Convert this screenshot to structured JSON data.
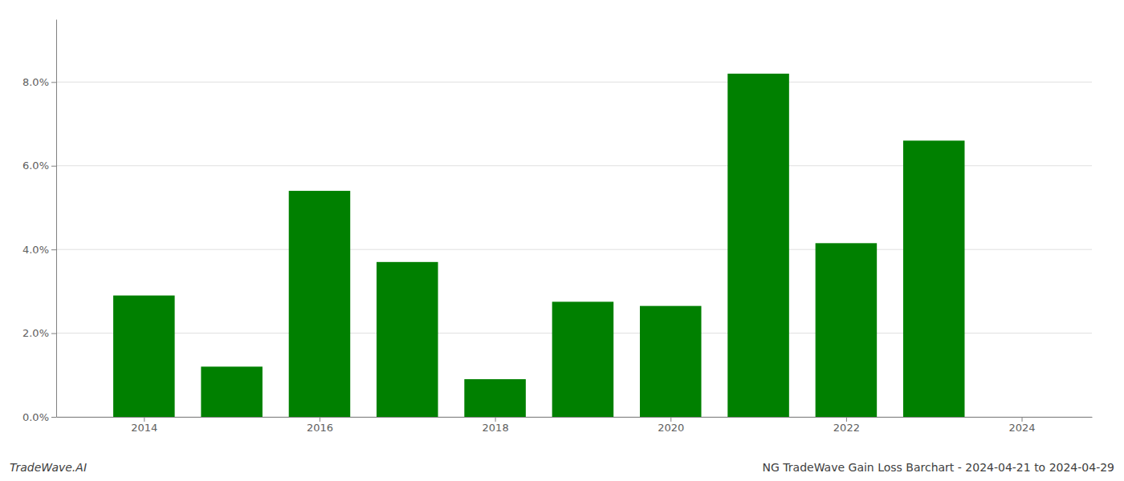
{
  "chart_data": {
    "type": "bar",
    "title": "NG TradeWave Gain Loss Barchart - 2024-04-21 to 2024-04-29",
    "annotations": [
      "TradeWave.AI"
    ],
    "x": [
      2014,
      2015,
      2016,
      2017,
      2018,
      2019,
      2020,
      2021,
      2022,
      2023
    ],
    "values": [
      0.029,
      0.012,
      0.054,
      0.037,
      0.009,
      0.0275,
      0.0265,
      0.082,
      0.0415,
      0.066
    ],
    "color": "#008000",
    "xlim": [
      2013.0,
      2024.8
    ],
    "xticks": [
      2014,
      2016,
      2018,
      2020,
      2022,
      2024
    ],
    "ylim": [
      0,
      0.095
    ],
    "yticks": [
      {
        "value": 0,
        "label": "0.0%"
      },
      {
        "value": 0.02,
        "label": "2.0%"
      },
      {
        "value": 0.04,
        "label": "4.0%"
      },
      {
        "value": 0.06,
        "label": "6.0%"
      },
      {
        "value": 0.08,
        "label": "8.0%"
      }
    ],
    "grid": true
  }
}
